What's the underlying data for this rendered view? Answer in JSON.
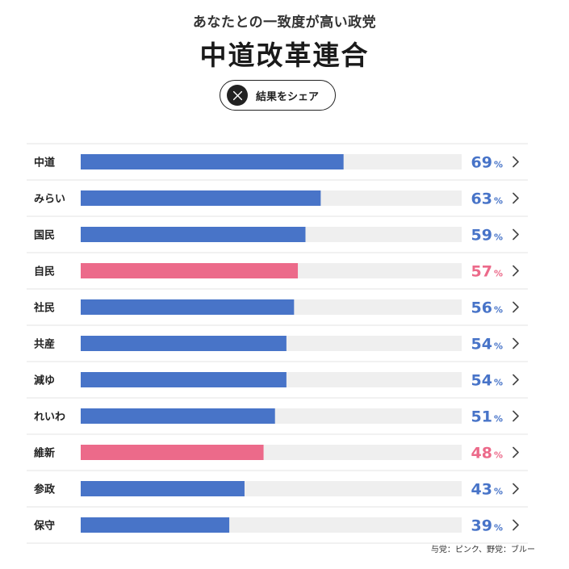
{
  "header": {
    "subtitle": "あなたとの一致度が高い政党",
    "title": "中道改革連合",
    "share_label": "結果をシェア",
    "share_icon": "x-logo-icon"
  },
  "colors": {
    "blue": "#4874c8",
    "pink": "#ec6a8a",
    "track": "#efefef",
    "divider": "#e3e3e3"
  },
  "chart_data": {
    "type": "bar",
    "orientation": "horizontal",
    "categories": [
      "中道",
      "みらい",
      "国民",
      "自民",
      "社民",
      "共産",
      "減ゆ",
      "れいわ",
      "維新",
      "参政",
      "保守"
    ],
    "values": [
      69,
      63,
      59,
      57,
      56,
      54,
      54,
      51,
      48,
      43,
      39
    ],
    "unit": "%",
    "groups": [
      "blue",
      "blue",
      "blue",
      "pink",
      "blue",
      "blue",
      "blue",
      "blue",
      "pink",
      "blue",
      "blue"
    ],
    "xlim": [
      0,
      100
    ]
  },
  "footnote": "与党：ピンク、野党：ブルー"
}
